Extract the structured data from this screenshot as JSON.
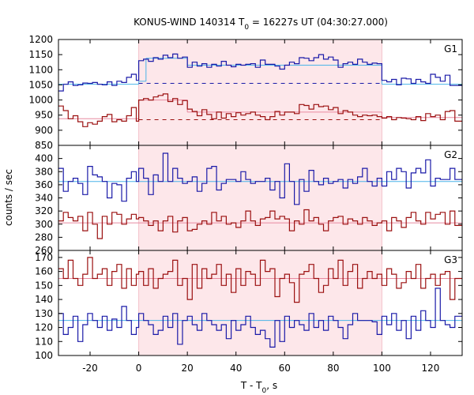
{
  "chart_data": {
    "type": "line",
    "title_prefix": "KONUS-WIND 140314 T",
    "title_sub": "0",
    "title_suffix": " = 16227s UT (04:30:27.000)",
    "xlabel_prefix": "T - T",
    "xlabel_sub": "0",
    "xlabel_suffix": ", s",
    "ylabel": "counts / sec",
    "xlim": [
      -33,
      133
    ],
    "xticks": [
      -20,
      0,
      20,
      40,
      60,
      80,
      100,
      120
    ],
    "highlight_interval": [
      0,
      100
    ],
    "colors": {
      "blue": "#1a1aa8",
      "red": "#9b1010",
      "cyan": "#4ab4e8",
      "pink": "#e88aa0",
      "highlight": "#fde7ea"
    },
    "bin_edges": [
      -33,
      -31,
      -29,
      -27,
      -25,
      -23,
      -21,
      -19,
      -17,
      -15,
      -13,
      -11,
      -9,
      -7,
      -5,
      -3,
      -1,
      0,
      2,
      4,
      6,
      8,
      10,
      12,
      14,
      16,
      18,
      20,
      22,
      24,
      26,
      28,
      30,
      32,
      34,
      36,
      38,
      40,
      42,
      44,
      46,
      48,
      50,
      52,
      54,
      56,
      58,
      60,
      62,
      64,
      66,
      68,
      70,
      72,
      74,
      76,
      78,
      80,
      82,
      84,
      86,
      88,
      90,
      92,
      94,
      96,
      98,
      100,
      102,
      104,
      106,
      108,
      110,
      112,
      114,
      116,
      118,
      120,
      122,
      124,
      126,
      128,
      130,
      133
    ],
    "panels": [
      {
        "label": "G1",
        "ylim": [
          850,
          1200
        ],
        "yticks": [
          850,
          900,
          950,
          1000,
          1050,
          1100,
          1150,
          1200
        ],
        "series": [
          {
            "color": "blue",
            "values": [
              1030,
              1052,
              1060,
              1048,
              1050,
              1056,
              1055,
              1058,
              1052,
              1050,
              1060,
              1048,
              1062,
              1058,
              1075,
              1085,
              1065,
              1130,
              1135,
              1128,
              1140,
              1135,
              1148,
              1140,
              1152,
              1138,
              1142,
              1108,
              1125,
              1112,
              1120,
              1108,
              1118,
              1112,
              1128,
              1115,
              1110,
              1118,
              1115,
              1118,
              1120,
              1108,
              1132,
              1118,
              1118,
              1112,
              1102,
              1115,
              1125,
              1120,
              1140,
              1138,
              1130,
              1140,
              1150,
              1135,
              1142,
              1132,
              1108,
              1120,
              1125,
              1118,
              1135,
              1125,
              1118,
              1122,
              1120,
              1065,
              1060,
              1068,
              1050,
              1072,
              1070,
              1055,
              1068,
              1060,
              1055,
              1085,
              1075,
              1062,
              1082,
              1048,
              1048
            ]
          },
          {
            "color": "red",
            "values": [
              980,
              965,
              938,
              948,
              928,
              912,
              925,
              920,
              930,
              945,
              952,
              928,
              935,
              930,
              948,
              975,
              930,
              1000,
              1005,
              1000,
              1010,
              1015,
              1020,
              995,
              1005,
              985,
              998,
              970,
              962,
              948,
              968,
              952,
              938,
              960,
              940,
              955,
              945,
              958,
              950,
              955,
              960,
              950,
              945,
              935,
              945,
              962,
              950,
              960,
              960,
              955,
              985,
              982,
              970,
              985,
              978,
              980,
              968,
              975,
              955,
              965,
              960,
              950,
              945,
              950,
              948,
              950,
              945,
              940,
              945,
              935,
              942,
              940,
              938,
              935,
              945,
              932,
              955,
              945,
              950,
              935,
              962,
              965,
              930
            ]
          }
        ],
        "levels": [
          {
            "color": "cyan",
            "style": "solid",
            "segments": [
              [
                -33,
                0,
                1052
              ],
              [
                0,
                3,
                1062
              ],
              [
                3,
                20,
                1138
              ],
              [
                20,
                100,
                1115
              ],
              [
                100,
                133,
                1052
              ]
            ]
          },
          {
            "color": "pink",
            "style": "solid",
            "segments": [
              [
                -33,
                0,
                938
              ],
              [
                0,
                20,
                1000
              ],
              [
                20,
                100,
                960
              ],
              [
                100,
                133,
                942
              ]
            ]
          },
          {
            "color": "blue",
            "style": "dashed",
            "segments": [
              [
                0,
                100,
                1055
              ]
            ]
          },
          {
            "color": "red",
            "style": "dashed",
            "segments": [
              [
                0,
                100,
                935
              ]
            ]
          }
        ]
      },
      {
        "label": "G2",
        "ylim": [
          260,
          420
        ],
        "yticks": [
          260,
          280,
          300,
          320,
          340,
          360,
          380,
          400
        ],
        "series": [
          {
            "color": "blue",
            "values": [
              385,
              350,
              365,
              370,
              362,
              345,
              388,
              375,
              372,
              365,
              340,
              362,
              360,
              335,
              370,
              380,
              365,
              385,
              370,
              345,
              375,
              365,
              408,
              365,
              385,
              370,
              362,
              365,
              372,
              350,
              362,
              385,
              388,
              352,
              362,
              368,
              368,
              365,
              380,
              368,
              362,
              365,
              365,
              370,
              352,
              365,
              340,
              392,
              365,
              330,
              368,
              350,
              382,
              365,
              360,
              370,
              362,
              365,
              368,
              355,
              368,
              362,
              372,
              385,
              365,
              358,
              370,
              358,
              380,
              368,
              385,
              380,
              355,
              378,
              385,
              378,
              398,
              358,
              370,
              368,
              368,
              385,
              368
            ]
          },
          {
            "color": "red",
            "values": [
              305,
              318,
              310,
              305,
              312,
              290,
              318,
              300,
              278,
              312,
              300,
              318,
              315,
              300,
              308,
              315,
              308,
              310,
              305,
              298,
              305,
              290,
              305,
              312,
              288,
              305,
              310,
              290,
              292,
              300,
              305,
              300,
              318,
              305,
              312,
              300,
              302,
              295,
              305,
              320,
              305,
              298,
              308,
              310,
              320,
              308,
              312,
              308,
              290,
              305,
              300,
              322,
              305,
              310,
              300,
              290,
              305,
              310,
              312,
              300,
              308,
              305,
              300,
              310,
              305,
              298,
              302,
              305,
              290,
              310,
              305,
              295,
              310,
              318,
              305,
              300,
              318,
              308,
              315,
              318,
              300,
              320,
              298
            ]
          }
        ],
        "levels": [
          {
            "color": "cyan",
            "style": "solid",
            "segments": [
              [
                -33,
                133,
                365
              ]
            ]
          },
          {
            "color": "pink",
            "style": "solid",
            "segments": [
              [
                -33,
                133,
                302
              ]
            ]
          }
        ]
      },
      {
        "label": "G3",
        "ylim": [
          100,
          175
        ],
        "yticks": [
          100,
          110,
          120,
          130,
          140,
          150,
          160,
          170
        ],
        "series": [
          {
            "color": "blue",
            "values": [
              130,
              115,
              120,
              128,
              110,
              122,
              130,
              125,
              120,
              128,
              118,
              126,
              120,
              135,
              125,
              115,
              120,
              130,
              125,
              122,
              115,
              118,
              128,
              120,
              130,
              108,
              125,
              128,
              122,
              118,
              130,
              125,
              122,
              118,
              122,
              112,
              125,
              118,
              122,
              128,
              120,
              115,
              118,
              112,
              106,
              125,
              110,
              128,
              120,
              125,
              122,
              118,
              130,
              120,
              125,
              118,
              128,
              125,
              120,
              112,
              122,
              130,
              125,
              125,
              125,
              124,
              115,
              128,
              122,
              130,
              118,
              125,
              112,
              128,
              118,
              132,
              125,
              120,
              148,
              125,
              122,
              120,
              128
            ]
          },
          {
            "color": "red",
            "values": [
              162,
              155,
              168,
              155,
              150,
              158,
              170,
              155,
              158,
              162,
              150,
              160,
              165,
              148,
              162,
              150,
              158,
              160,
              150,
              162,
              148,
              155,
              158,
              160,
              168,
              150,
              155,
              140,
              165,
              148,
              162,
              155,
              158,
              165,
              150,
              158,
              145,
              162,
              150,
              160,
              158,
              150,
              168,
              160,
              162,
              142,
              155,
              158,
              152,
              138,
              158,
              160,
              165,
              155,
              145,
              150,
              162,
              155,
              168,
              150,
              160,
              165,
              148,
              155,
              160,
              155,
              158,
              150,
              162,
              158,
              148,
              152,
              160,
              155,
              165,
              148,
              155,
              158,
              150,
              158,
              160,
              140,
              155
            ]
          }
        ],
        "levels": [
          {
            "color": "cyan",
            "style": "solid",
            "segments": [
              [
                -33,
                133,
                125
              ]
            ]
          },
          {
            "color": "pink",
            "style": "solid",
            "segments": [
              [
                -33,
                133,
                155
              ]
            ]
          }
        ]
      }
    ]
  }
}
